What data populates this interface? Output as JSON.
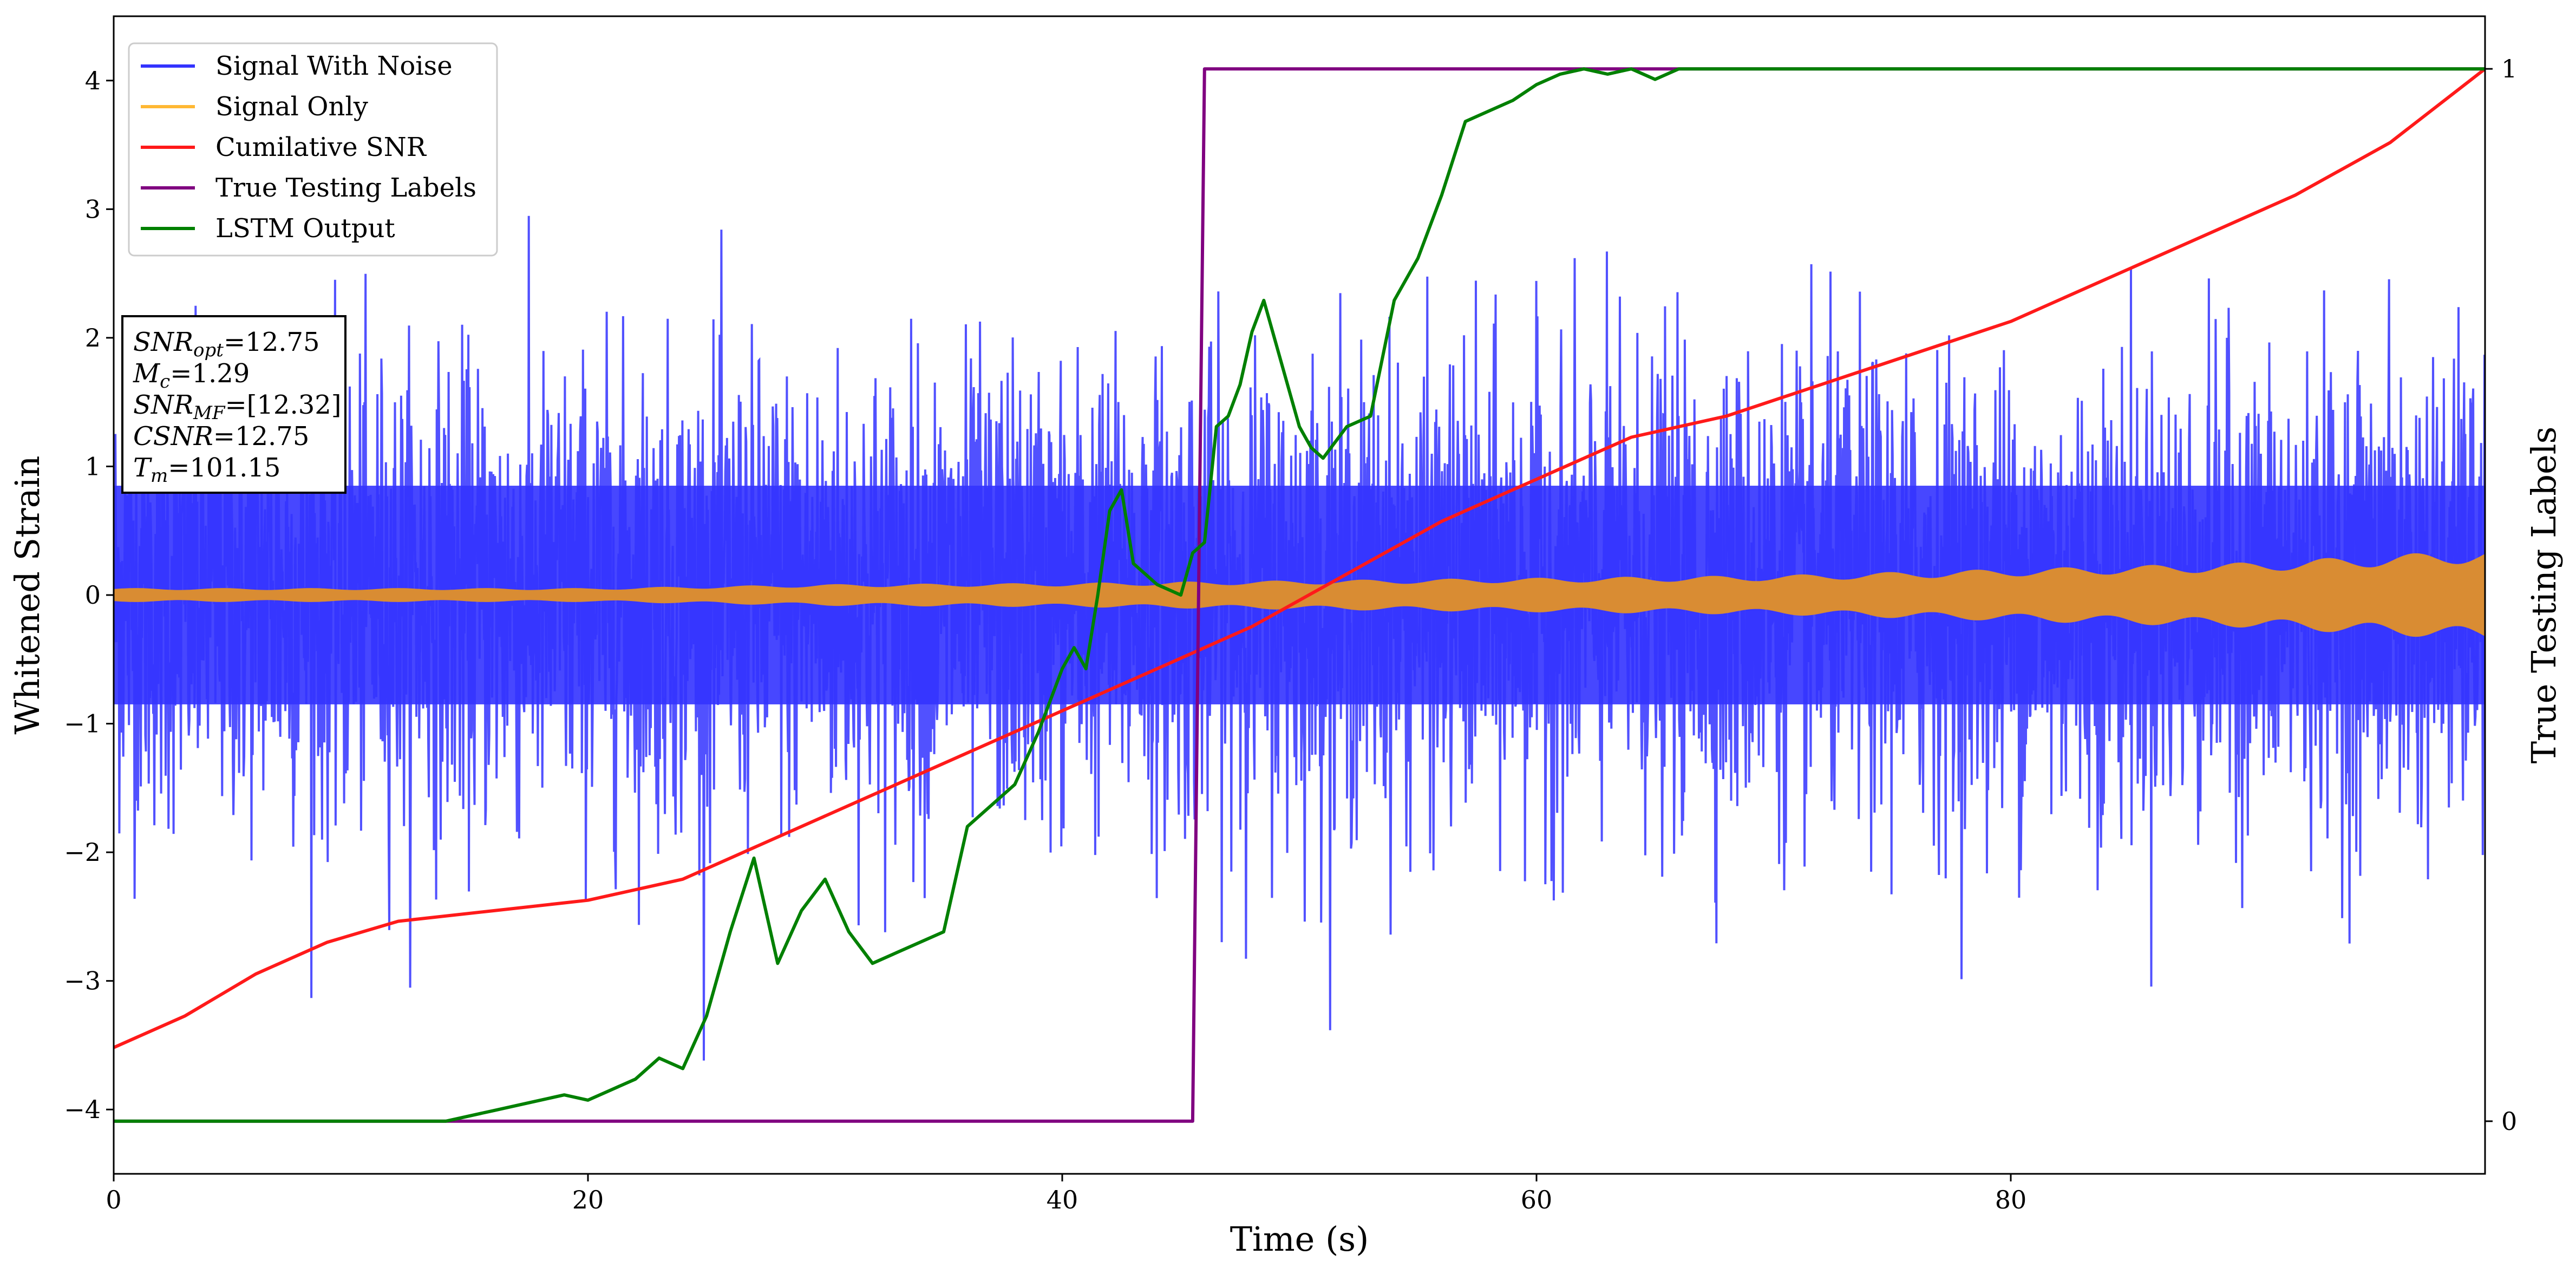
{
  "chart_data": {
    "type": "line",
    "xlabel": "Time (s)",
    "ylabel": "Whitened Strain",
    "y2label": "True Testing Labels",
    "xlim": [
      0,
      100
    ],
    "ylim": [
      -4.5,
      4.5
    ],
    "y2lim": [
      -0.05,
      1.05
    ],
    "xticks": [
      0,
      20,
      40,
      60,
      80
    ],
    "yticks": [
      -4,
      -3,
      -2,
      -1,
      0,
      1,
      2,
      3,
      4
    ],
    "y2ticks": [
      0,
      1
    ],
    "grid": false,
    "legend_position": "top-left",
    "legend": [
      {
        "name": "Signal With Noise",
        "color": "#3333ff"
      },
      {
        "name": "Signal Only",
        "color": "#ffb833"
      },
      {
        "name": "Cumilative SNR",
        "color": "#ff1a1a"
      },
      {
        "name": "True Testing Labels",
        "color": "#800080"
      },
      {
        "name": "LSTM Output",
        "color": "#008000"
      }
    ],
    "info_box": [
      {
        "label": "SNR",
        "sub": "opt",
        "value": "=12.75"
      },
      {
        "label": "M",
        "sub": "c",
        "value": "=1.29"
      },
      {
        "label": "SNR",
        "sub": "MF",
        "value": "=[12.32]"
      },
      {
        "label": "CSNR",
        "sub": "",
        "value": "=12.75"
      },
      {
        "label": "T",
        "sub": "m",
        "value": "=101.15"
      }
    ],
    "series": [
      {
        "name": "Signal With Noise",
        "color": "#3333ff",
        "noise": true,
        "core_band": [
          -0.85,
          0.85
        ],
        "max_abs": 3.8
      },
      {
        "name": "Signal Only",
        "color": "#d98c33",
        "envelope_x": [
          0,
          10,
          20,
          30,
          40,
          50,
          60,
          70,
          80,
          90,
          100
        ],
        "envelope_y": [
          0.05,
          0.05,
          0.05,
          0.08,
          0.09,
          0.11,
          0.13,
          0.15,
          0.2,
          0.25,
          0.35
        ]
      },
      {
        "name": "Cumilative SNR",
        "color": "#ff1a1a",
        "axis": "y2",
        "x": [
          0,
          3,
          6,
          9,
          12,
          16,
          20,
          24,
          28,
          32,
          36,
          40,
          44,
          48,
          52,
          56,
          60,
          64,
          68,
          72,
          76,
          80,
          84,
          88,
          92,
          96,
          100
        ],
        "y": [
          0.07,
          0.1,
          0.14,
          0.17,
          0.19,
          0.2,
          0.21,
          0.23,
          0.27,
          0.31,
          0.35,
          0.39,
          0.43,
          0.47,
          0.52,
          0.57,
          0.61,
          0.65,
          0.67,
          0.7,
          0.73,
          0.76,
          0.8,
          0.84,
          0.88,
          0.93,
          1.0
        ]
      },
      {
        "name": "True Testing Labels",
        "color": "#800080",
        "axis": "y2",
        "x": [
          0,
          45.5,
          46.0,
          100
        ],
        "y": [
          0,
          0,
          1,
          1
        ]
      },
      {
        "name": "LSTM Output",
        "color": "#008000",
        "axis": "y2",
        "x": [
          0,
          14,
          16,
          18,
          19,
          20,
          21,
          22,
          23,
          24,
          25,
          26,
          27,
          28,
          29,
          30,
          31,
          32,
          33,
          34,
          35,
          36,
          37,
          38,
          39,
          40,
          40.5,
          41,
          41.5,
          42,
          42.5,
          43,
          43.5,
          44,
          45,
          45.5,
          46,
          46.5,
          47,
          47.5,
          48,
          48.5,
          49,
          49.5,
          50,
          50.5,
          51,
          52,
          53,
          54,
          55,
          56,
          57,
          58,
          59,
          60,
          61,
          62,
          63,
          64,
          65,
          66,
          70,
          75,
          80,
          100
        ],
        "y": [
          0,
          0,
          0.01,
          0.02,
          0.025,
          0.02,
          0.03,
          0.04,
          0.06,
          0.05,
          0.1,
          0.18,
          0.25,
          0.15,
          0.2,
          0.23,
          0.18,
          0.15,
          0.16,
          0.17,
          0.18,
          0.28,
          0.3,
          0.32,
          0.37,
          0.43,
          0.45,
          0.43,
          0.5,
          0.58,
          0.6,
          0.53,
          0.52,
          0.51,
          0.5,
          0.54,
          0.55,
          0.66,
          0.67,
          0.7,
          0.75,
          0.78,
          0.74,
          0.7,
          0.66,
          0.64,
          0.63,
          0.66,
          0.67,
          0.78,
          0.82,
          0.88,
          0.95,
          0.96,
          0.97,
          0.985,
          0.995,
          1.0,
          0.995,
          1.0,
          0.99,
          1.0,
          1.0,
          1.0,
          1.0,
          1.0
        ]
      }
    ]
  }
}
